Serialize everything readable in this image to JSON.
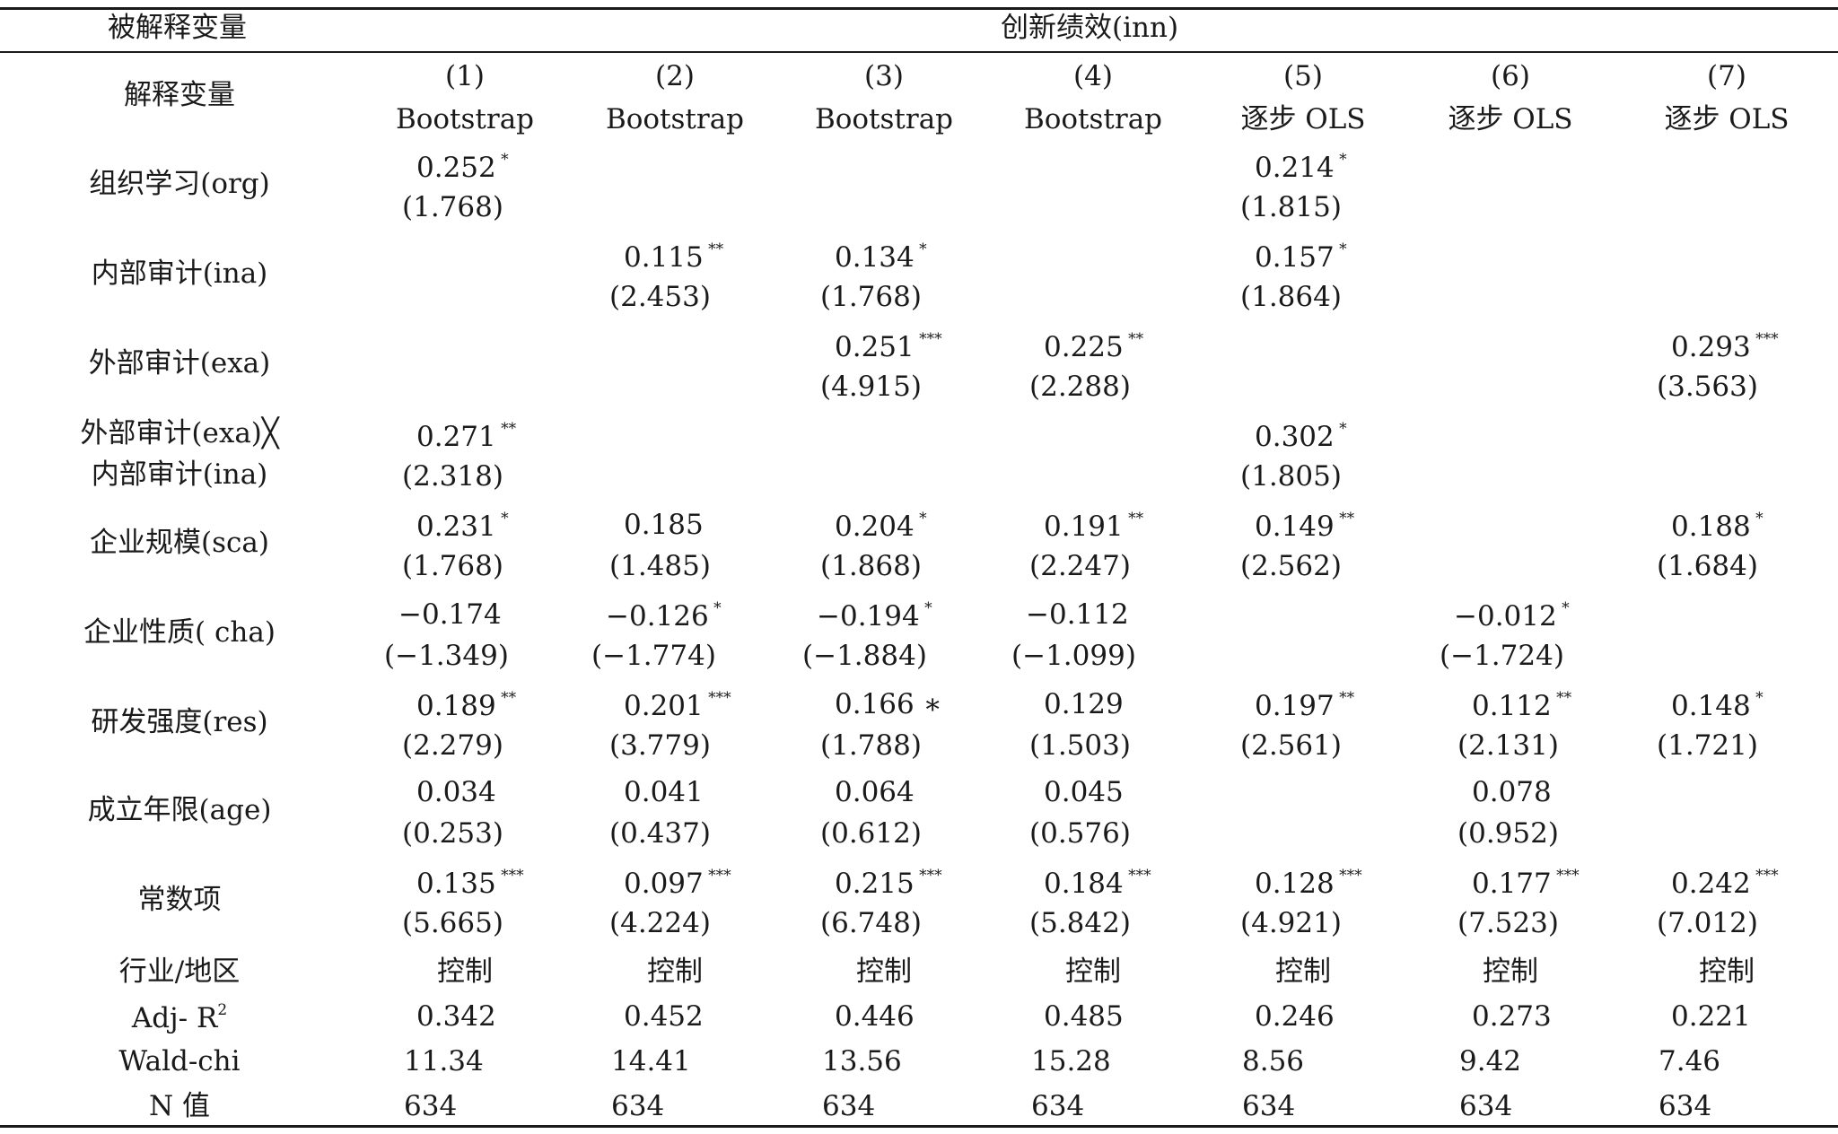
{
  "header": {
    "dependent_label": "被解释变量",
    "dependent_value": "创新绩效(inn)",
    "explanatory_label": "解释变量",
    "models": [
      {
        "num": "(1)",
        "method": "Bootstrap"
      },
      {
        "num": "(2)",
        "method": "Bootstrap"
      },
      {
        "num": "(3)",
        "method": "Bootstrap"
      },
      {
        "num": "(4)",
        "method": "Bootstrap"
      },
      {
        "num": "(5)",
        "method": "逐步 OLS"
      },
      {
        "num": "(6)",
        "method": "逐步 OLS"
      },
      {
        "num": "(7)",
        "method": "逐步 OLS"
      }
    ]
  },
  "rows": [
    {
      "label": "组织学习(org)",
      "cells": [
        {
          "coef": "0.252",
          "star": "*",
          "t": "(1.768)"
        },
        null,
        null,
        null,
        {
          "coef": "0.214",
          "star": "*",
          "t": "(1.815)"
        },
        null,
        null
      ]
    },
    {
      "label": "内部审计(ina)",
      "cells": [
        null,
        {
          "coef": "0.115",
          "star": "**",
          "t": "(2.453)"
        },
        {
          "coef": "0.134",
          "star": "*",
          "t": "(1.768)"
        },
        null,
        {
          "coef": "0.157",
          "star": "*",
          "t": "(1.864)"
        },
        null,
        null
      ]
    },
    {
      "label": "外部审计(exa)",
      "cells": [
        null,
        null,
        {
          "coef": "0.251",
          "star": "***",
          "t": "(4.915)"
        },
        {
          "coef": "0.225",
          "star": "**",
          "t": "(2.288)"
        },
        null,
        null,
        {
          "coef": "0.293",
          "star": "***",
          "t": "(3.563)"
        }
      ]
    },
    {
      "label": "外部审计(exa)╳",
      "label2": "内部审计(ina)",
      "cells": [
        {
          "coef": "0.271",
          "star": "**",
          "t": "(2.318)"
        },
        null,
        null,
        null,
        {
          "coef": "0.302",
          "star": "*",
          "t": "(1.805)"
        },
        null,
        null
      ]
    },
    {
      "label": "企业规模(sca)",
      "cells": [
        {
          "coef": "0.231",
          "star": "*",
          "t": "(1.768)"
        },
        {
          "coef": "0.185",
          "star": "",
          "t": "(1.485)"
        },
        {
          "coef": "0.204",
          "star": "*",
          "t": "(1.868)"
        },
        {
          "coef": "0.191",
          "star": "**",
          "t": "(2.247)"
        },
        {
          "coef": "0.149",
          "star": "**",
          "t": "(2.562)"
        },
        null,
        {
          "coef": "0.188",
          "star": "*",
          "t": "(1.684)"
        }
      ]
    },
    {
      "label": "企业性质( cha)",
      "cells": [
        {
          "coef": "−0.174",
          "star": "",
          "t": "(−1.349)"
        },
        {
          "coef": "−0.126",
          "star": "*",
          "t": "(−1.774)"
        },
        {
          "coef": "−0.194",
          "star": "*",
          "t": "(−1.884)"
        },
        {
          "coef": "−0.112",
          "star": "",
          "t": "(−1.099)"
        },
        null,
        {
          "coef": "−0.012",
          "star": "*",
          "t": "(−1.724)"
        },
        null
      ]
    },
    {
      "label": "研发强度(res)",
      "cells": [
        {
          "coef": "0.189",
          "star": "**",
          "t": "(2.279)"
        },
        {
          "coef": "0.201",
          "star": "***",
          "t": "(3.779)"
        },
        {
          "coef": "0.166 ∗",
          "star": "",
          "t": "(1.788)"
        },
        {
          "coef": "0.129",
          "star": "",
          "t": "(1.503)"
        },
        {
          "coef": "0.197",
          "star": "**",
          "t": "(2.561)"
        },
        {
          "coef": "0.112",
          "star": "**",
          "t": "(2.131)"
        },
        {
          "coef": "0.148",
          "star": "*",
          "t": "(1.721)"
        }
      ]
    },
    {
      "label": "成立年限(age)",
      "cells": [
        {
          "coef": "0.034",
          "star": "",
          "t": "(0.253)"
        },
        {
          "coef": "0.041",
          "star": "",
          "t": "(0.437)"
        },
        {
          "coef": "0.064",
          "star": "",
          "t": "(0.612)"
        },
        {
          "coef": "0.045",
          "star": "",
          "t": "(0.576)"
        },
        null,
        {
          "coef": "0.078",
          "star": "",
          "t": "(0.952)"
        },
        null
      ]
    },
    {
      "label": "常数项",
      "cells": [
        {
          "coef": "0.135",
          "star": "***",
          "t": "(5.665)"
        },
        {
          "coef": "0.097",
          "star": "***",
          "t": "(4.224)"
        },
        {
          "coef": "0.215",
          "star": "***",
          "t": "(6.748)"
        },
        {
          "coef": "0.184",
          "star": "***",
          "t": "(5.842)"
        },
        {
          "coef": "0.128",
          "star": "***",
          "t": "(4.921)"
        },
        {
          "coef": "0.177",
          "star": "***",
          "t": "(7.523)"
        },
        {
          "coef": "0.242",
          "star": "***",
          "t": "(7.012)"
        }
      ]
    }
  ],
  "footer": [
    {
      "label": "行业/地区",
      "values": [
        "控制",
        "控制",
        "控制",
        "控制",
        "控制",
        "控制",
        "控制"
      ]
    },
    {
      "label": "Adj- R",
      "sup": "2",
      "values": [
        "0.342",
        "0.452",
        "0.446",
        "0.485",
        "0.246",
        "0.273",
        "0.221"
      ]
    },
    {
      "label": "Wald-chi",
      "values": [
        "11.34",
        "14.41",
        "13.56",
        "15.28",
        "8.56",
        "9.42",
        "7.46"
      ]
    },
    {
      "label": "N 值",
      "values": [
        "634",
        "634",
        "634",
        "634",
        "634",
        "634",
        "634"
      ]
    }
  ]
}
